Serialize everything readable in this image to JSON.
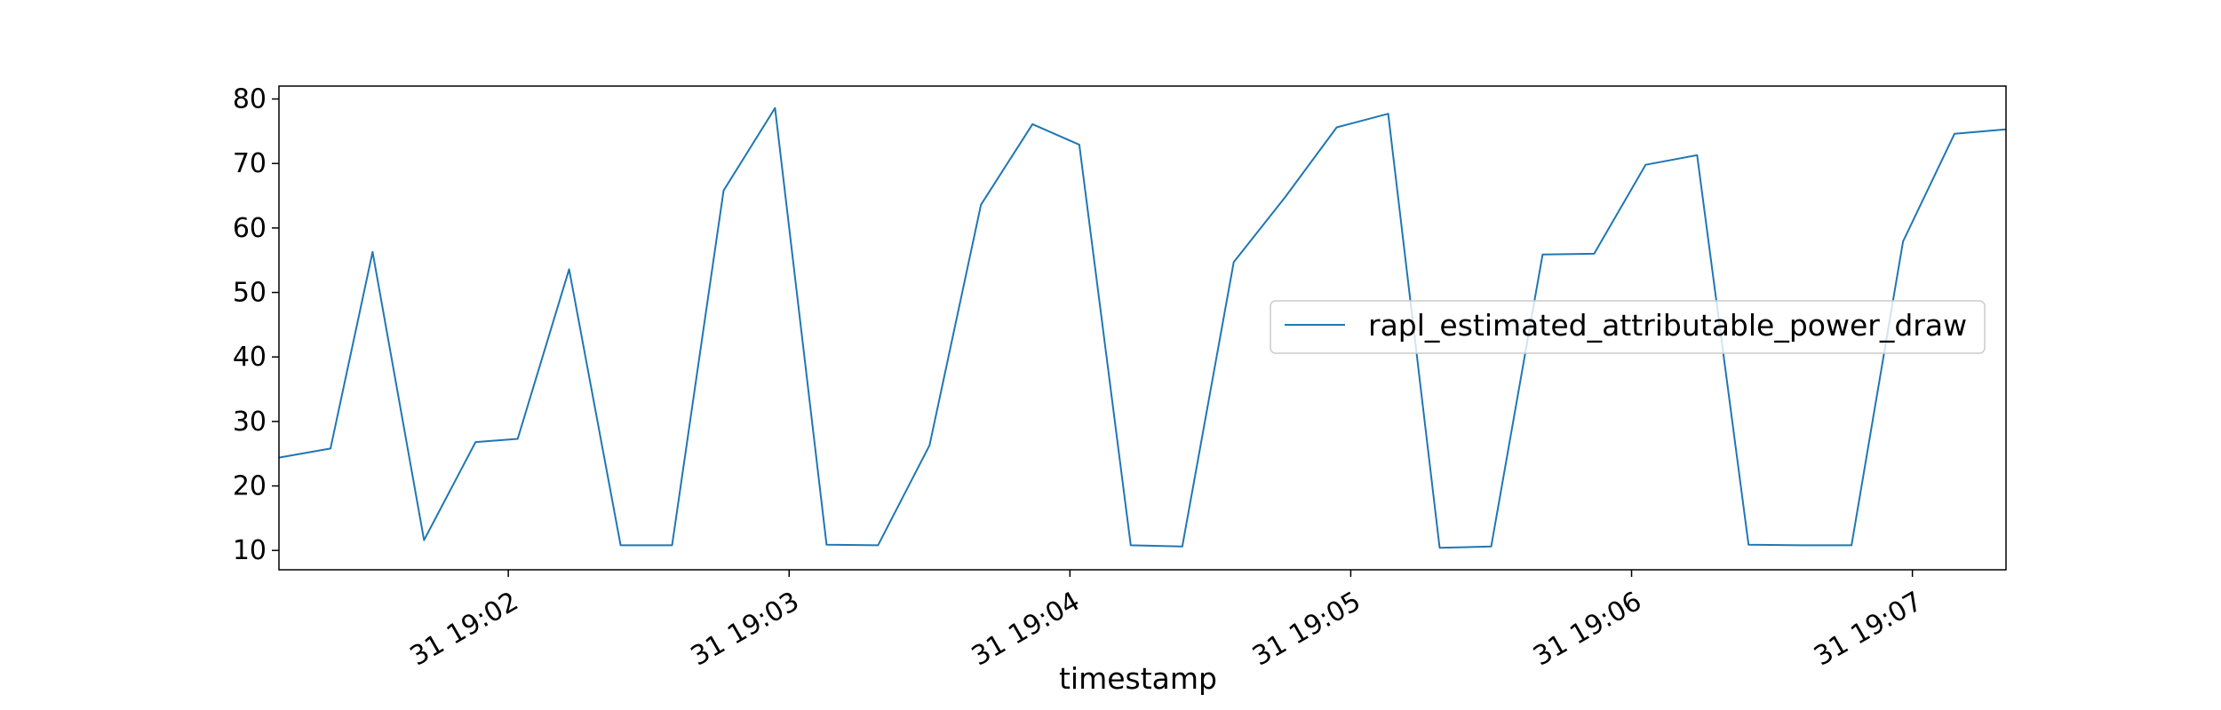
{
  "chart_data": {
    "type": "line",
    "title": "",
    "xlabel": "timestamp",
    "ylabel": "",
    "x_ticks": [
      "31 19:02",
      "31 19:03",
      "31 19:04",
      "31 19:05",
      "31 19:06",
      "31 19:07"
    ],
    "y_ticks": [
      "10",
      "20",
      "30",
      "40",
      "50",
      "60",
      "70",
      "80"
    ],
    "xlim": [
      "31 19:01:11",
      "31 19:07:20"
    ],
    "ylim": [
      7.0,
      82.0
    ],
    "grid": false,
    "legend": {
      "placement": "center-right"
    },
    "colors": {
      "series": "#1f77b4",
      "axes": "#000000",
      "legend_border": "#cccccc"
    },
    "series": [
      {
        "name": "rapl_estimated_attributable_power_draw",
        "x": [
          "31 19:01:11",
          "31 19:01:22",
          "31 19:01:31",
          "31 19:01:42",
          "31 19:01:53",
          "31 19:02:02",
          "31 19:02:13",
          "31 19:02:24",
          "31 19:02:35",
          "31 19:02:46",
          "31 19:02:57",
          "31 19:03:08",
          "31 19:03:19",
          "31 19:03:30",
          "31 19:03:41",
          "31 19:03:52",
          "31 19:04:02",
          "31 19:04:13",
          "31 19:04:24",
          "31 19:04:35",
          "31 19:04:46",
          "31 19:04:57",
          "31 19:05:08",
          "31 19:05:19",
          "31 19:05:30",
          "31 19:05:41",
          "31 19:05:52",
          "31 19:06:03",
          "31 19:06:14",
          "31 19:06:25",
          "31 19:06:36",
          "31 19:06:47",
          "31 19:06:58",
          "31 19:07:09",
          "31 19:07:20"
        ],
        "y": [
          24.4,
          25.8,
          56.3,
          11.6,
          26.8,
          27.3,
          53.6,
          10.8,
          10.8,
          65.8,
          78.6,
          10.9,
          10.8,
          26.3,
          63.6,
          76.1,
          72.9,
          10.8,
          10.6,
          54.7,
          64.8,
          75.6,
          77.7,
          10.4,
          10.6,
          55.9,
          56.0,
          69.8,
          71.3,
          10.9,
          10.8,
          10.8,
          57.9,
          74.6,
          75.3
        ]
      }
    ]
  }
}
